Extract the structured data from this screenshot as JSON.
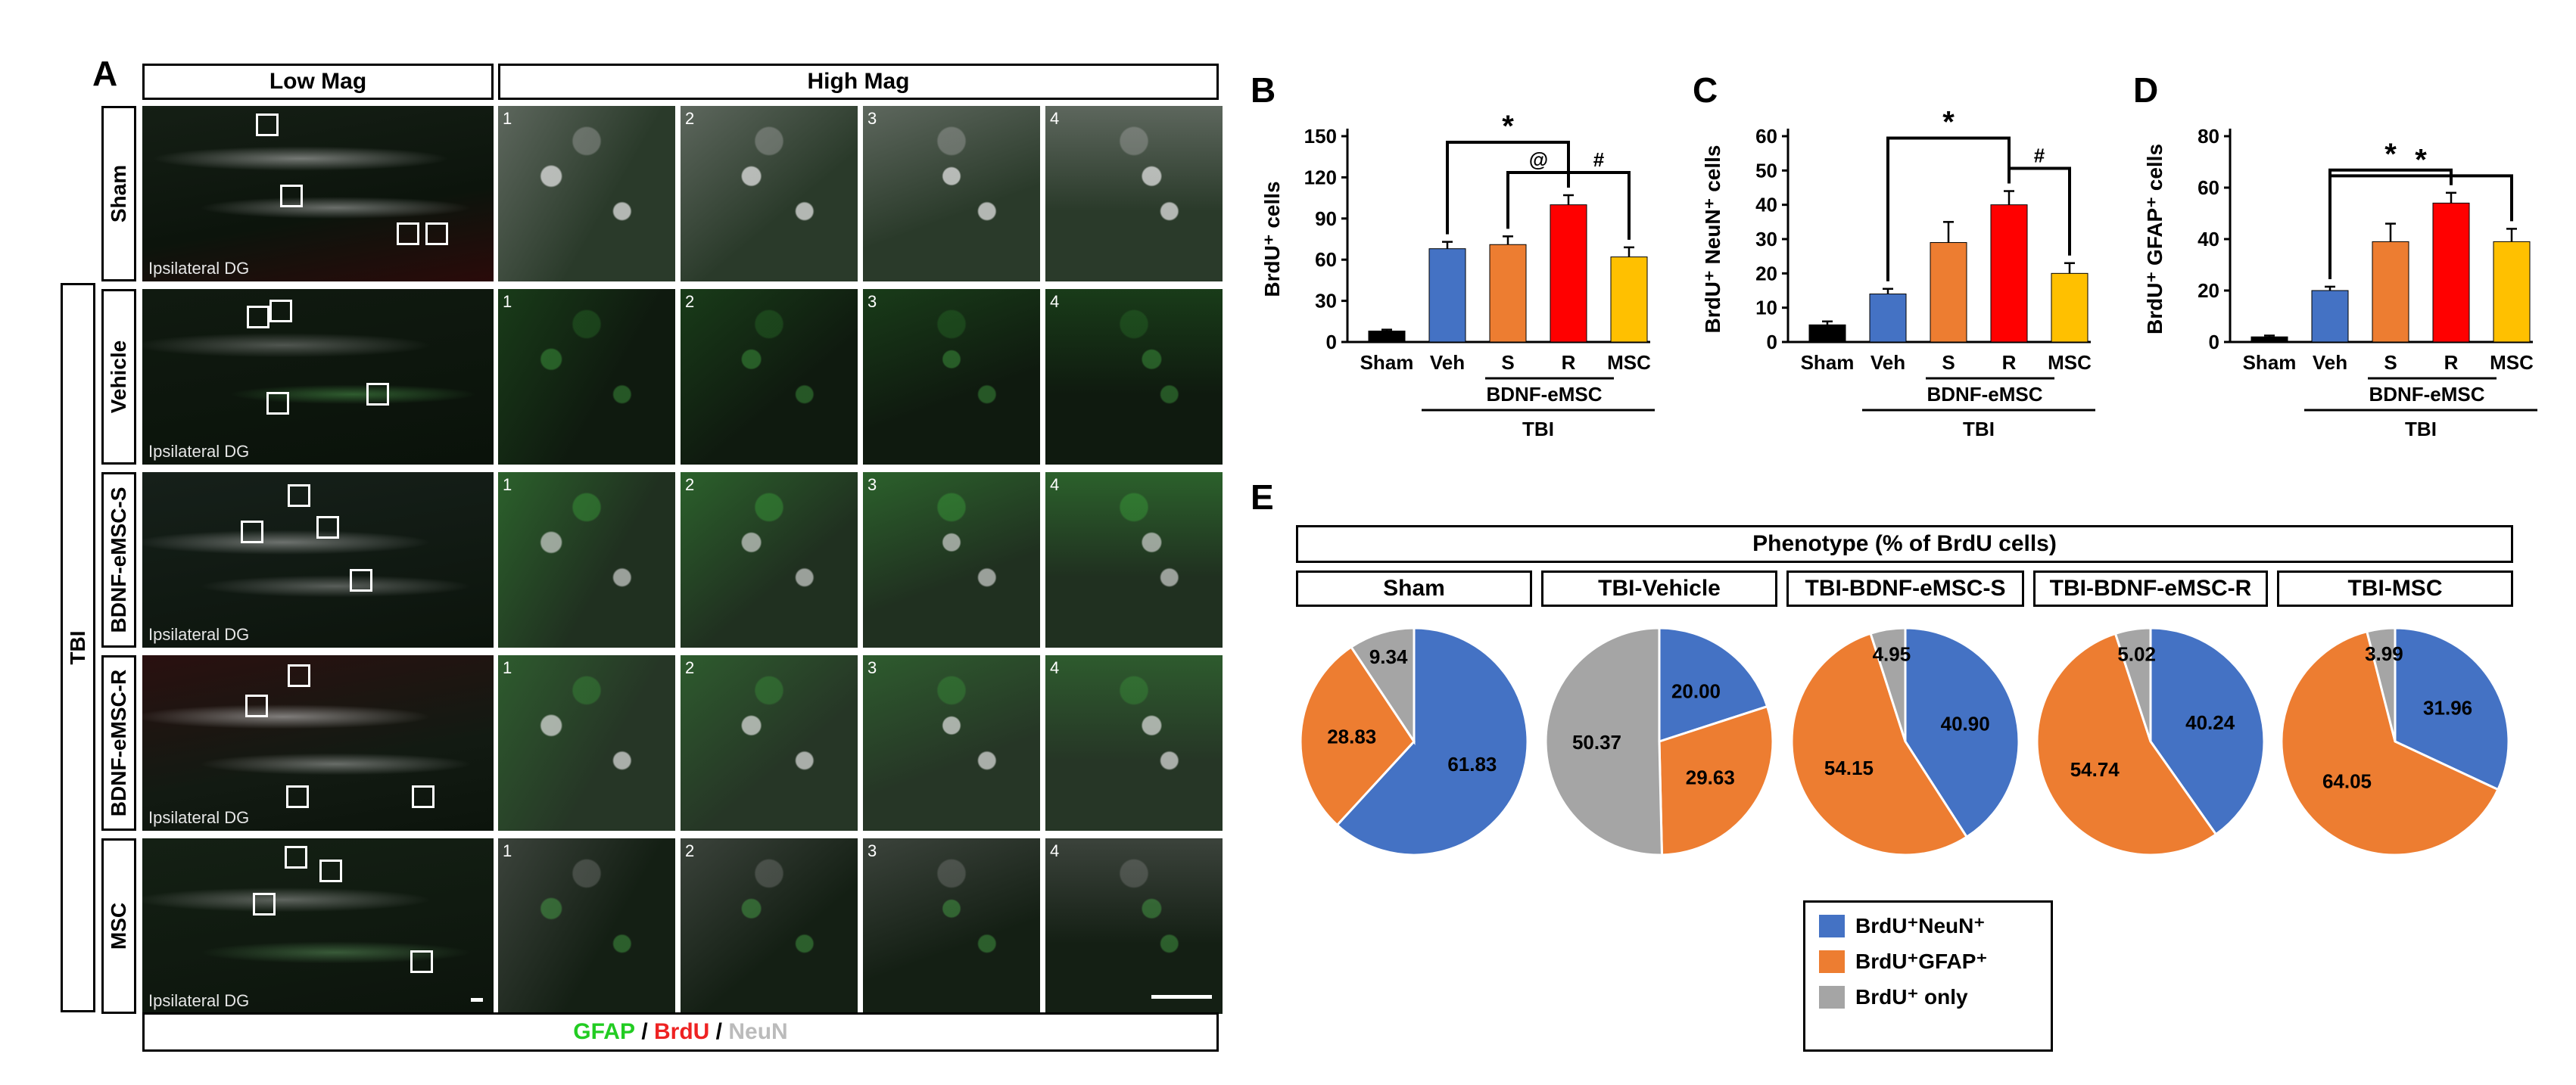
{
  "panel_letters": {
    "A": "A",
    "B": "B",
    "C": "C",
    "D": "D",
    "E": "E"
  },
  "panelA": {
    "low_mag": "Low Mag",
    "high_mag": "High Mag",
    "tbi": "TBI",
    "rows": [
      {
        "label": "Sham",
        "caption": "Ipsilateral DG"
      },
      {
        "label": "Vehicle",
        "caption": "Ipsilateral DG"
      },
      {
        "label": "BDNF-eMSC-S",
        "caption": "Ipsilateral DG"
      },
      {
        "label": "BDNF-eMSC-R",
        "caption": "Ipsilateral DG"
      },
      {
        "label": "MSC",
        "caption": "Ipsilateral DG"
      }
    ],
    "tile_numbers": [
      "1",
      "2",
      "3",
      "4"
    ],
    "stain": {
      "gfap": "GFAP",
      "sep1": " / ",
      "brdu": "BrdU",
      "sep2": " / ",
      "neun": "NeuN"
    }
  },
  "colors": {
    "sham": "#000000",
    "veh": "#4472c4",
    "s": "#ed7d31",
    "r": "#ff0000",
    "msc": "#ffc000",
    "pie_blue": "#4472c4",
    "pie_orange": "#ed7d31",
    "pie_gray": "#a5a5a5",
    "gfap": "#22cc22",
    "brdu": "#ee2222",
    "neun": "#bbbbbb"
  },
  "chart_data": [
    {
      "type": "bar",
      "panel": "B",
      "ylabel": "BrdU⁺ cells",
      "categories": [
        "Sham",
        "Veh",
        "S",
        "R",
        "MSC"
      ],
      "values": [
        8,
        68,
        71,
        100,
        62
      ],
      "errors": [
        1,
        5,
        6,
        7,
        7
      ],
      "ylim": [
        0,
        150
      ],
      "yticks": [
        0,
        30,
        60,
        90,
        120,
        150
      ],
      "group_label": "BDNF-eMSC",
      "tbi_label": "TBI",
      "sig": [
        {
          "from": 1,
          "to": 3,
          "symbol": "*"
        },
        {
          "from": 2,
          "to": 3,
          "symbol": "@"
        },
        {
          "from": 3,
          "to": 4,
          "symbol": "#"
        }
      ]
    },
    {
      "type": "bar",
      "panel": "C",
      "ylabel": "BrdU⁺ NeuN⁺ cells",
      "categories": [
        "Sham",
        "Veh",
        "S",
        "R",
        "MSC"
      ],
      "values": [
        5,
        14,
        29,
        40,
        20
      ],
      "errors": [
        1,
        1.5,
        6,
        4,
        3
      ],
      "ylim": [
        0,
        60
      ],
      "yticks": [
        0,
        10,
        20,
        30,
        40,
        50,
        60
      ],
      "group_label": "BDNF-eMSC",
      "tbi_label": "TBI",
      "sig": [
        {
          "from": 1,
          "to": 3,
          "symbol": "*"
        },
        {
          "from": 3,
          "to": 4,
          "symbol": "#"
        }
      ]
    },
    {
      "type": "bar",
      "panel": "D",
      "ylabel": "BrdU⁺ GFAP⁺ cells",
      "categories": [
        "Sham",
        "Veh",
        "S",
        "R",
        "MSC"
      ],
      "values": [
        2,
        20,
        39,
        54,
        39
      ],
      "errors": [
        0.5,
        1.5,
        7,
        4,
        5
      ],
      "ylim": [
        0,
        80
      ],
      "yticks": [
        0,
        20,
        40,
        60,
        80
      ],
      "group_label": "BDNF-eMSC",
      "tbi_label": "TBI",
      "sig": [
        {
          "from": 1,
          "to": 3,
          "symbol": "*"
        },
        {
          "from": 1,
          "to": 4,
          "symbol": "*"
        }
      ]
    },
    {
      "type": "pie",
      "panel": "E",
      "title": "Phenotype (% of BrdU cells)",
      "legend": [
        "BrdU⁺NeuN⁺",
        "BrdU⁺GFAP⁺",
        "BrdU⁺ only"
      ],
      "pies": [
        {
          "name": "Sham",
          "values": [
            61.83,
            28.83,
            9.34
          ],
          "labels": [
            "61.83",
            "28.83",
            "9.34"
          ]
        },
        {
          "name": "TBI-Vehicle",
          "values": [
            20.0,
            29.63,
            50.37
          ],
          "labels": [
            "20.00",
            "29.63",
            "50.37"
          ]
        },
        {
          "name": "TBI-BDNF-eMSC-S",
          "values": [
            40.9,
            54.15,
            4.95
          ],
          "labels": [
            "40.90",
            "54.15",
            "4.95"
          ]
        },
        {
          "name": "TBI-BDNF-eMSC-R",
          "values": [
            40.24,
            54.74,
            5.02
          ],
          "labels": [
            "40.24",
            "54.74",
            "5.02"
          ]
        },
        {
          "name": "TBI-MSC",
          "values": [
            31.96,
            64.05,
            3.99
          ],
          "labels": [
            "31.96",
            "64.05",
            "3.99"
          ]
        }
      ]
    }
  ]
}
